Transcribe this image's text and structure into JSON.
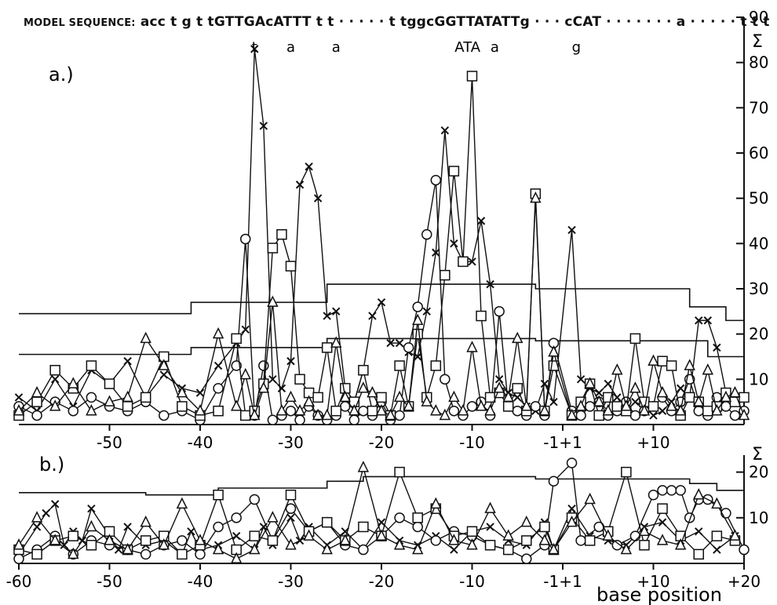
{
  "sequence": {
    "label": "MODEL SEQUENCE:",
    "text": "acc  t  g t tGTTGAcATTT t t  ·  ·  ·  ·  ·  t tggcGGTTATATTg  ·  ·  · cCAT  ·  ·  ·  ·  ·  ·  ·  a  ·  ·  ·  ·  ·  t t t",
    "variants": [
      {
        "text": "t",
        "x": -34
      },
      {
        "text": "a",
        "x": -30
      },
      {
        "text": "a",
        "x": -25
      },
      {
        "text": "ATA",
        "x": -10.5
      },
      {
        "text": "a",
        "x": -7.5
      },
      {
        "text": "g",
        "x": 1.5
      }
    ]
  },
  "chart_data": [
    {
      "type": "line",
      "panel_label": "a.)",
      "ylabel": "Σ",
      "ylim": [
        0,
        90
      ],
      "yticks": [
        10,
        20,
        30,
        40,
        50,
        60,
        70,
        80,
        90
      ],
      "xlim": [
        -60,
        20
      ],
      "x_tick_labels": [
        "-50",
        "-40",
        "-30",
        "-20",
        "-10",
        "-1+1",
        "+10"
      ],
      "x_tick_values": [
        -50,
        -40,
        -30,
        -20,
        -10,
        0,
        10
      ],
      "thresholds": [
        {
          "name": "upper",
          "steps": [
            [
              -60,
              24.5
            ],
            [
              -41,
              24.5
            ],
            [
              -41,
              27
            ],
            [
              -26,
              27
            ],
            [
              -26,
              31
            ],
            [
              -3,
              31
            ],
            [
              -3,
              30
            ],
            [
              14,
              30
            ],
            [
              14,
              26
            ],
            [
              18,
              26
            ],
            [
              18,
              23
            ],
            [
              20,
              23
            ]
          ]
        },
        {
          "name": "middle",
          "steps": [
            [
              -60,
              15.5
            ],
            [
              -41,
              15.5
            ],
            [
              -41,
              17
            ],
            [
              -26,
              17
            ],
            [
              -26,
              19
            ],
            [
              -3,
              19
            ],
            [
              -3,
              18.5
            ],
            [
              16,
              18.5
            ],
            [
              16,
              15
            ],
            [
              20,
              15
            ]
          ]
        }
      ],
      "series": [
        {
          "marker": "x",
          "x": [
            -60,
            -58,
            -56,
            -54,
            -52,
            -50,
            -48,
            -46,
            -44,
            -42,
            -40,
            -38,
            -36,
            -35,
            -34,
            -33,
            -32,
            -31,
            -30,
            -29,
            -28,
            -27,
            -26,
            -25,
            -24,
            -23,
            -22,
            -21,
            -20,
            -19,
            -18,
            -17,
            -16,
            -15,
            -14,
            -13,
            -12,
            -11,
            -10,
            -9,
            -8,
            -7,
            -6,
            -5,
            -4,
            -3,
            -2,
            -1,
            1,
            2,
            3,
            4,
            5,
            6,
            7,
            8,
            9,
            10,
            11,
            12,
            13,
            14,
            15,
            16,
            17,
            18,
            19,
            20
          ],
          "y": [
            6,
            3,
            10,
            4,
            12,
            9,
            14,
            6,
            11,
            8,
            7,
            13,
            18,
            21,
            83,
            66,
            10,
            8,
            14,
            53,
            57,
            50,
            24,
            25,
            8,
            5,
            12,
            24,
            27,
            18,
            18,
            16,
            15,
            25,
            38,
            65,
            40,
            36,
            36,
            45,
            31,
            10,
            7,
            6,
            4,
            3,
            9,
            5,
            43,
            10,
            8,
            7,
            9,
            6,
            3,
            5,
            4,
            2,
            3,
            5,
            8,
            6,
            23,
            23,
            17,
            7,
            5,
            3
          ]
        },
        {
          "marker": "o",
          "x": [
            -60,
            -58,
            -56,
            -54,
            -52,
            -50,
            -48,
            -46,
            -44,
            -42,
            -40,
            -38,
            -36,
            -35,
            -34,
            -33,
            -32,
            -31,
            -30,
            -29,
            -28,
            -27,
            -26,
            -25,
            -24,
            -23,
            -22,
            -21,
            -20,
            -19,
            -18,
            -17,
            -16,
            -15,
            -14,
            -13,
            -12,
            -11,
            -10,
            -9,
            -8,
            -7,
            -6,
            -5,
            -4,
            -3,
            -2,
            -1,
            1,
            2,
            3,
            4,
            5,
            6,
            7,
            8,
            9,
            10,
            11,
            12,
            13,
            14,
            15,
            16,
            17,
            18,
            19,
            20
          ],
          "y": [
            4,
            2,
            5,
            3,
            6,
            4,
            3,
            5,
            2,
            3,
            1,
            8,
            13,
            41,
            2,
            13,
            1,
            2,
            3,
            1,
            4,
            2,
            1,
            2,
            4,
            1,
            3,
            2,
            5,
            1,
            2,
            17,
            26,
            42,
            54,
            10,
            3,
            2,
            4,
            5,
            2,
            25,
            4,
            3,
            2,
            4,
            2,
            18,
            3,
            2,
            4,
            5,
            2,
            3,
            5,
            2,
            3,
            4,
            6,
            3,
            5,
            10,
            3,
            2,
            6,
            4,
            2,
            3
          ]
        },
        {
          "marker": "square",
          "x": [
            -60,
            -58,
            -56,
            -54,
            -52,
            -50,
            -48,
            -46,
            -44,
            -42,
            -40,
            -38,
            -36,
            -35,
            -34,
            -33,
            -32,
            -31,
            -30,
            -29,
            -28,
            -27,
            -26,
            -25,
            -24,
            -23,
            -22,
            -21,
            -20,
            -19,
            -18,
            -17,
            -16,
            -15,
            -14,
            -13,
            -12,
            -11,
            -10,
            -9,
            -8,
            -7,
            -6,
            -5,
            -4,
            -3,
            -2,
            -1,
            1,
            2,
            3,
            4,
            5,
            6,
            7,
            8,
            9,
            10,
            11,
            12,
            13,
            14,
            15,
            16,
            17,
            18,
            19,
            20
          ],
          "y": [
            2,
            5,
            12,
            8,
            13,
            9,
            4,
            6,
            15,
            4,
            2,
            3,
            19,
            2,
            3,
            9,
            39,
            42,
            35,
            10,
            7,
            6,
            17,
            3,
            8,
            5,
            12,
            3,
            6,
            2,
            13,
            4,
            20,
            6,
            13,
            33,
            56,
            36,
            77,
            24,
            6,
            7,
            4,
            8,
            3,
            51,
            3,
            13,
            2,
            5,
            9,
            2,
            6,
            4,
            3,
            19,
            5,
            4,
            14,
            13,
            2,
            6,
            5,
            3,
            4,
            7,
            5,
            6
          ]
        },
        {
          "marker": "triangle",
          "x": [
            -60,
            -58,
            -56,
            -54,
            -52,
            -50,
            -48,
            -46,
            -44,
            -42,
            -40,
            -38,
            -36,
            -35,
            -34,
            -33,
            -32,
            -31,
            -30,
            -29,
            -28,
            -27,
            -26,
            -25,
            -24,
            -23,
            -22,
            -21,
            -20,
            -19,
            -18,
            -17,
            -16,
            -15,
            -14,
            -13,
            -12,
            -11,
            -10,
            -9,
            -8,
            -7,
            -6,
            -5,
            -4,
            -3,
            -2,
            -1,
            1,
            2,
            3,
            4,
            5,
            6,
            7,
            8,
            9,
            10,
            11,
            12,
            13,
            14,
            15,
            16,
            17,
            18,
            19,
            20
          ],
          "y": [
            3,
            7,
            4,
            9,
            3,
            5,
            6,
            19,
            13,
            7,
            3,
            20,
            4,
            11,
            2,
            8,
            27,
            3,
            6,
            3,
            5,
            2,
            2,
            18,
            6,
            3,
            8,
            7,
            3,
            2,
            6,
            4,
            23,
            5,
            3,
            2,
            6,
            3,
            17,
            4,
            3,
            8,
            6,
            19,
            4,
            50,
            3,
            16,
            2,
            4,
            9,
            5,
            3,
            12,
            4,
            8,
            3,
            14,
            7,
            4,
            3,
            13,
            5,
            12,
            3,
            6,
            7,
            2
          ]
        }
      ]
    },
    {
      "type": "line",
      "panel_label": "b.)",
      "ylabel": "Σ",
      "ylim": [
        0,
        22
      ],
      "yticks": [
        10,
        20
      ],
      "xlim": [
        -60,
        20
      ],
      "x_tick_labels": [
        "-60",
        "-50",
        "-40",
        "-30",
        "-20",
        "-10",
        "-1+1",
        "+10",
        "+20"
      ],
      "x_tick_values": [
        -60,
        -50,
        -40,
        -30,
        -20,
        -10,
        0,
        10,
        20
      ],
      "xlabel": "base position",
      "thresholds": [
        {
          "name": "upper",
          "steps": [
            [
              -60,
              15.5
            ],
            [
              -46,
              15.5
            ],
            [
              -46,
              15
            ],
            [
              -38,
              15
            ],
            [
              -38,
              16.5
            ],
            [
              -26,
              16.5
            ],
            [
              -26,
              18
            ],
            [
              -22,
              18
            ],
            [
              -22,
              19
            ],
            [
              -3,
              19
            ],
            [
              -3,
              18.5
            ],
            [
              14,
              18.5
            ],
            [
              14,
              17.5
            ],
            [
              17,
              17.5
            ],
            [
              17,
              16
            ],
            [
              20,
              16
            ]
          ]
        }
      ],
      "series": [
        {
          "marker": "x",
          "x": [
            -60,
            -58,
            -57,
            -56,
            -55,
            -54,
            -53,
            -52,
            -50,
            -49,
            -48,
            -46,
            -44,
            -42,
            -41,
            -40,
            -38,
            -36,
            -34,
            -33,
            -32,
            -30,
            -29,
            -28,
            -26,
            -24,
            -22,
            -20,
            -18,
            -16,
            -14,
            -12,
            -10,
            -8,
            -6,
            -4,
            -2,
            -1,
            1,
            3,
            5,
            7,
            9,
            11,
            13,
            15,
            17,
            19
          ],
          "y": [
            2,
            8,
            11,
            13,
            4,
            7,
            5,
            12,
            6,
            3,
            8,
            4,
            5,
            2,
            7,
            3,
            4,
            6,
            3,
            8,
            4,
            10,
            5,
            8,
            4,
            7,
            3,
            9,
            5,
            4,
            6,
            3,
            7,
            8,
            5,
            4,
            9,
            3,
            12,
            6,
            5,
            4,
            8,
            9,
            5,
            7,
            3,
            6
          ]
        },
        {
          "marker": "o",
          "x": [
            -60,
            -58,
            -56,
            -54,
            -52,
            -50,
            -48,
            -46,
            -44,
            -42,
            -40,
            -38,
            -36,
            -34,
            -32,
            -30,
            -28,
            -26,
            -24,
            -22,
            -20,
            -18,
            -16,
            -14,
            -12,
            -10,
            -8,
            -6,
            -4,
            -2,
            -1,
            1,
            2,
            4,
            6,
            8,
            10,
            11,
            12,
            13,
            14,
            15,
            16,
            18,
            20
          ],
          "y": [
            1,
            3,
            6,
            2,
            5,
            4,
            3,
            2,
            4,
            5,
            2,
            8,
            10,
            14,
            5,
            12,
            7,
            9,
            4,
            3,
            6,
            10,
            8,
            5,
            7,
            6,
            4,
            3,
            1,
            4,
            18,
            22,
            5,
            8,
            4,
            6,
            15,
            16,
            16,
            16,
            10,
            14,
            14,
            11,
            3
          ]
        },
        {
          "marker": "square",
          "x": [
            -60,
            -58,
            -56,
            -54,
            -52,
            -50,
            -48,
            -46,
            -44,
            -42,
            -40,
            -38,
            -36,
            -34,
            -32,
            -30,
            -28,
            -26,
            -24,
            -22,
            -20,
            -18,
            -16,
            -14,
            -12,
            -10,
            -8,
            -6,
            -4,
            -2,
            -1,
            1,
            3,
            5,
            7,
            9,
            11,
            13,
            15,
            17,
            19
          ],
          "y": [
            3,
            2,
            5,
            6,
            4,
            7,
            3,
            5,
            6,
            2,
            4,
            15,
            3,
            6,
            5,
            15,
            7,
            9,
            5,
            8,
            6,
            20,
            10,
            12,
            6,
            7,
            4,
            3,
            5,
            8,
            3,
            10,
            5,
            7,
            20,
            4,
            12,
            6,
            2,
            6,
            5
          ]
        },
        {
          "marker": "triangle",
          "x": [
            -60,
            -58,
            -56,
            -54,
            -52,
            -50,
            -48,
            -46,
            -44,
            -42,
            -40,
            -38,
            -36,
            -34,
            -32,
            -30,
            -28,
            -26,
            -24,
            -22,
            -20,
            -18,
            -16,
            -14,
            -12,
            -10,
            -8,
            -6,
            -4,
            -2,
            -1,
            1,
            3,
            5,
            7,
            9,
            11,
            13,
            15,
            17,
            19
          ],
          "y": [
            4,
            10,
            5,
            2,
            8,
            5,
            3,
            9,
            4,
            13,
            5,
            3,
            1,
            3,
            10,
            4,
            6,
            3,
            5,
            21,
            6,
            4,
            3,
            13,
            5,
            4,
            12,
            6,
            9,
            5,
            3,
            9,
            14,
            6,
            3,
            7,
            5,
            4,
            15,
            13,
            6
          ]
        }
      ]
    }
  ]
}
